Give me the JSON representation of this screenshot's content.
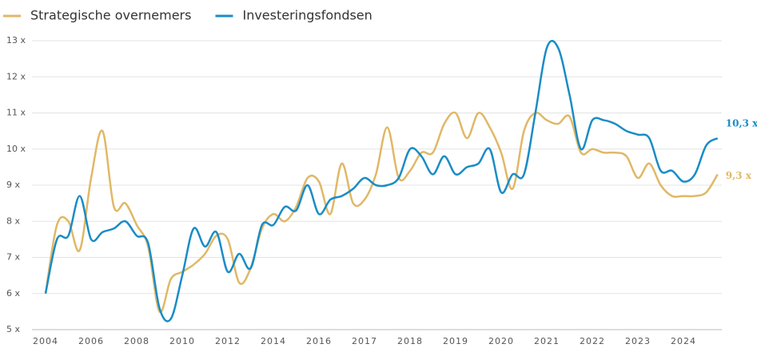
{
  "chart_data": {
    "type": "line",
    "categories": [
      "2004",
      null,
      null,
      null,
      "2006",
      null,
      null,
      null,
      "2008",
      null,
      null,
      null,
      "2010",
      null,
      null,
      null,
      "2012",
      null,
      null,
      null,
      "2014",
      null,
      null,
      null,
      "2016",
      null,
      null,
      null,
      "2017",
      null,
      null,
      null,
      "2018",
      null,
      null,
      null,
      "2019",
      null,
      null,
      null,
      "2020",
      null,
      null,
      null,
      "2021",
      null,
      null,
      null,
      "2022",
      null,
      null,
      null,
      "2023",
      null,
      null,
      null,
      "2024",
      null,
      null,
      null
    ],
    "series": [
      {
        "name": "Strategische overnemers",
        "color": "#e0b866",
        "end_label": "9,3 x",
        "values": [
          6.0,
          7.9,
          8.0,
          7.2,
          9.2,
          10.5,
          8.4,
          8.5,
          7.9,
          7.3,
          5.5,
          6.4,
          6.6,
          6.8,
          7.1,
          7.6,
          7.5,
          6.3,
          6.7,
          7.8,
          8.2,
          8.0,
          8.4,
          9.2,
          9.1,
          8.2,
          9.6,
          8.5,
          8.6,
          9.3,
          10.6,
          9.2,
          9.4,
          9.9,
          9.9,
          10.7,
          11.0,
          10.3,
          11.0,
          10.6,
          9.9,
          8.9,
          10.5,
          11.0,
          10.8,
          10.7,
          10.9,
          9.9,
          10.0,
          9.9,
          9.9,
          9.8,
          9.2,
          9.6,
          9.0,
          8.7,
          8.7,
          8.7,
          8.8,
          9.3
        ]
      },
      {
        "name": "Investeringsfondsen",
        "color": "#1a8cc6",
        "end_label": "10,3 x",
        "values": [
          6.0,
          7.5,
          7.6,
          8.7,
          7.5,
          7.7,
          7.8,
          8.0,
          7.6,
          7.4,
          5.6,
          5.3,
          6.5,
          7.8,
          7.3,
          7.7,
          6.6,
          7.1,
          6.7,
          7.9,
          7.9,
          8.4,
          8.3,
          9.0,
          8.2,
          8.6,
          8.7,
          8.9,
          9.2,
          9.0,
          9.0,
          9.2,
          10.0,
          9.8,
          9.3,
          9.8,
          9.3,
          9.5,
          9.6,
          10.0,
          8.8,
          9.3,
          9.3,
          11.0,
          12.8,
          12.8,
          11.5,
          10.0,
          10.8,
          10.8,
          10.7,
          10.5,
          10.4,
          10.3,
          9.4,
          9.4,
          9.1,
          9.3,
          10.1,
          10.3
        ]
      }
    ],
    "ylim": [
      5,
      13
    ],
    "yticks": [
      {
        "value": 5,
        "label": "5 x"
      },
      {
        "value": 6,
        "label": "6 x"
      },
      {
        "value": 7,
        "label": "7 x"
      },
      {
        "value": 8,
        "label": "8 x"
      },
      {
        "value": 9,
        "label": "9 x"
      },
      {
        "value": 10,
        "label": "10 x"
      },
      {
        "value": 11,
        "label": "11 x"
      },
      {
        "value": 12,
        "label": "12 x"
      },
      {
        "value": 13,
        "label": "13 x"
      }
    ],
    "grid": true
  }
}
